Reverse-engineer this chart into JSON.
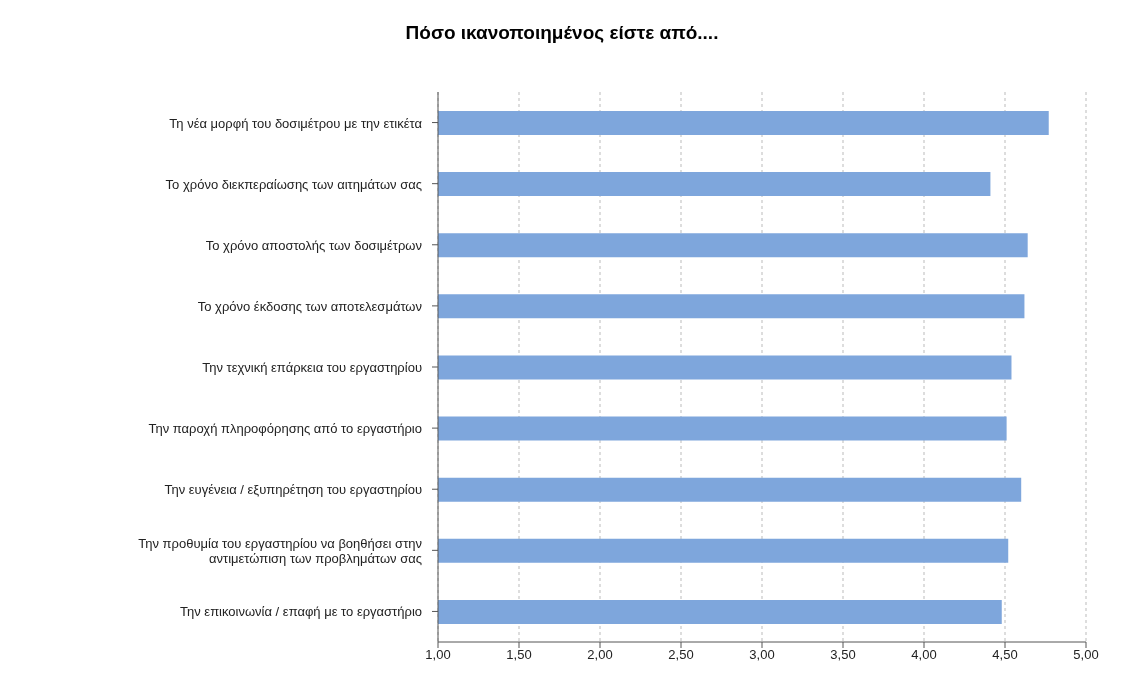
{
  "chart_data": {
    "type": "bar",
    "orientation": "horizontal",
    "title": "Πόσο ικανοποιημένος είστε από....",
    "categories": [
      "Τη νέα μορφή του δοσιμέτρου με την ετικέτα",
      "Το χρόνο διεκπεραίωσης των αιτημάτων σας",
      "Το χρόνο αποστολής των δοσιμέτρων",
      "Το χρόνο έκδοσης των αποτελεσμάτων",
      "Την τεχνική επάρκεια του εργαστηρίου",
      "Την παροχή πληροφόρησης από το εργαστήριο",
      "Την ευγένεια / εξυπηρέτηση του εργαστηρίου",
      "Την προθυμία του εργαστηρίου να βοηθήσει στην αντιμετώπιση των προβλημάτων σας",
      "Την επικοινωνία / επαφή με το εργαστήριο"
    ],
    "values": [
      4.77,
      4.41,
      4.64,
      4.62,
      4.54,
      4.51,
      4.6,
      4.52,
      4.48
    ],
    "color": "#7ea6dc",
    "xlim": [
      1,
      5
    ],
    "xticks": [
      {
        "value": 1,
        "label": "1,00"
      },
      {
        "value": 1.5,
        "label": "1,50"
      },
      {
        "value": 2,
        "label": "2,00"
      },
      {
        "value": 2.5,
        "label": "2,50"
      },
      {
        "value": 3,
        "label": "3,00"
      },
      {
        "value": 3.5,
        "label": "3,50"
      },
      {
        "value": 4,
        "label": "4,00"
      },
      {
        "value": 4.5,
        "label": "4,50"
      },
      {
        "value": 5,
        "label": "5,00"
      }
    ],
    "grid": "x"
  }
}
